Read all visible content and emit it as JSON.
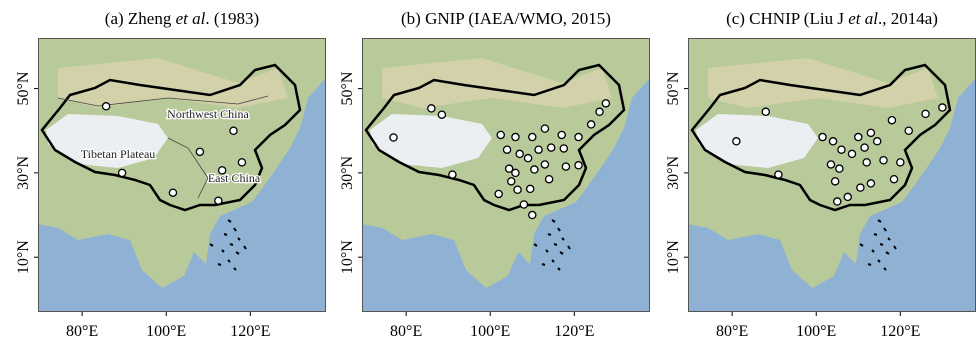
{
  "chart_data": {
    "type": "map",
    "xlim": [
      69.5,
      138
    ],
    "ylim": [
      -3,
      62
    ],
    "xticks": [
      {
        "value": 80,
        "label": "80°E"
      },
      {
        "value": 100,
        "label": "100°E"
      },
      {
        "value": 120,
        "label": "120°E"
      }
    ],
    "yticks": [
      {
        "value": 10,
        "label": "10°N"
      },
      {
        "value": 30,
        "label": "30°N"
      },
      {
        "value": 50,
        "label": "50°N"
      }
    ],
    "panels": [
      {
        "title": [
          "(a) Zheng ",
          "et al",
          ". (1983)"
        ],
        "regions": [
          "Northwest China",
          "Tibetan Plateau",
          "East China"
        ],
        "lon": [
          85.7,
          116,
          108,
          118,
          113.3,
          89.5,
          101.6,
          112.4
        ],
        "lat": [
          45.8,
          40,
          35,
          32.5,
          30.6,
          30,
          25.3,
          23.4
        ]
      },
      {
        "title": [
          "(b) GNIP (IAEA/WMO, 2015)"
        ],
        "regions": [],
        "lon": [
          86,
          77,
          88.5,
          102.5,
          106,
          110,
          113,
          117,
          121,
          126,
          127.5,
          124,
          104,
          107,
          109,
          111.5,
          114.5,
          117.5,
          104.5,
          106,
          110.5,
          113,
          118,
          121,
          91,
          105,
          106.5,
          109.5,
          114,
          102,
          108,
          110
        ],
        "lat": [
          45.3,
          38.4,
          43.8,
          39,
          38.5,
          38.5,
          40.5,
          39,
          38.5,
          44.5,
          46.5,
          41.5,
          35.5,
          34.5,
          33.5,
          35.5,
          36,
          35.8,
          31,
          30,
          30.8,
          32,
          31.5,
          31.8,
          29.6,
          28,
          26,
          26.2,
          28.5,
          25,
          22.5,
          20
        ]
      },
      {
        "title": [
          "(c) CHNIP (Liu J ",
          "et al",
          "., 2014a)"
        ],
        "regions": [],
        "lon": [
          81,
          88,
          101.5,
          104,
          110,
          113,
          122,
          130,
          126,
          118,
          106,
          108.5,
          111.5,
          114.5,
          103.5,
          105.5,
          112,
          116,
          120,
          118.5,
          104.5,
          110.5,
          113,
          107.5,
          91,
          105
        ],
        "lat": [
          37.5,
          44.5,
          38.5,
          37.5,
          38.5,
          39.5,
          40,
          45.5,
          44,
          42.5,
          35.5,
          34.5,
          36,
          37.5,
          32,
          31,
          32.5,
          33,
          32.5,
          28.5,
          28,
          26.5,
          27.5,
          24.3,
          29.6,
          23.2
        ]
      }
    ]
  }
}
